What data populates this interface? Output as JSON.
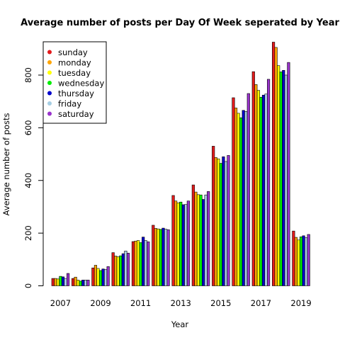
{
  "chart_data": {
    "type": "bar",
    "title": "Average number of posts per Day Of Week seperated by Year",
    "xlabel": "Year",
    "ylabel": "Average number of posts",
    "categories": [
      "2007",
      "2008",
      "2009",
      "2010",
      "2011",
      "2012",
      "2013",
      "2014",
      "2015",
      "2016",
      "2017",
      "2018",
      "2019"
    ],
    "x_tick_labels": [
      "2007",
      "2009",
      "2011",
      "2013",
      "2015",
      "2017",
      "2019"
    ],
    "y_ticks": [
      "0",
      "200",
      "400",
      "600",
      "800"
    ],
    "ylim": [
      0,
      925
    ],
    "grid": false,
    "legend_position": "top-left",
    "series": [
      {
        "name": "sunday",
        "color": "#e41a1c",
        "values": [
          28,
          28,
          68,
          126,
          168,
          230,
          343,
          383,
          530,
          714,
          813,
          925,
          208
        ]
      },
      {
        "name": "monday",
        "color": "#ffa500",
        "values": [
          28,
          33,
          78,
          113,
          170,
          218,
          322,
          356,
          487,
          675,
          764,
          905,
          184
        ]
      },
      {
        "name": "tuesday",
        "color": "#ffff00",
        "values": [
          26,
          22,
          66,
          110,
          172,
          216,
          315,
          346,
          482,
          655,
          742,
          836,
          174
        ]
      },
      {
        "name": "wednesday",
        "color": "#00ee00",
        "values": [
          36,
          18,
          58,
          114,
          164,
          214,
          318,
          345,
          465,
          638,
          716,
          812,
          186
        ]
      },
      {
        "name": "thursday",
        "color": "#0000cc",
        "values": [
          34,
          22,
          64,
          122,
          185,
          219,
          308,
          328,
          490,
          666,
          724,
          818,
          190
        ]
      },
      {
        "name": "friday",
        "color": "#a6cee3",
        "values": [
          28,
          22,
          62,
          132,
          172,
          215,
          309,
          345,
          472,
          662,
          728,
          800,
          183
        ]
      },
      {
        "name": "saturday",
        "color": "#9933cc",
        "values": [
          47,
          22,
          73,
          124,
          167,
          213,
          322,
          358,
          495,
          730,
          784,
          848,
          195
        ]
      }
    ]
  }
}
